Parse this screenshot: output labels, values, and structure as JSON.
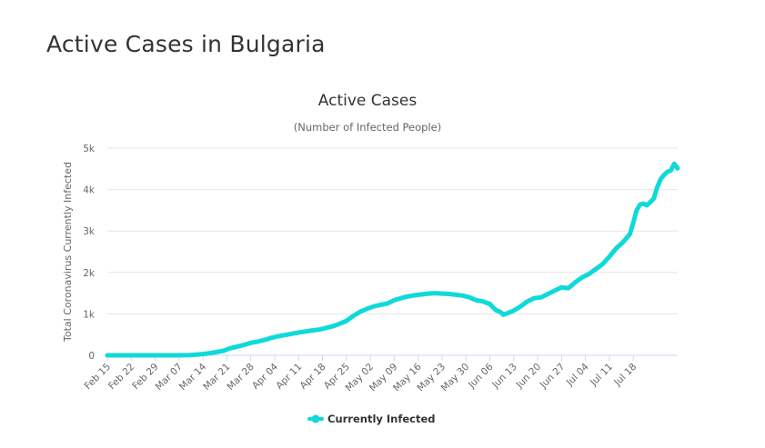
{
  "page": {
    "title": "Active Cases in Bulgaria"
  },
  "chart_data": {
    "type": "line",
    "title": "Active Cases",
    "subtitle": "(Number of Infected People)",
    "xlabel": "",
    "ylabel": "Total Coronavirus Currently Infected",
    "ylim": [
      0,
      5000
    ],
    "y_ticks": [
      {
        "value": 0,
        "label": "0"
      },
      {
        "value": 1000,
        "label": "1k"
      },
      {
        "value": 2000,
        "label": "2k"
      },
      {
        "value": 3000,
        "label": "3k"
      },
      {
        "value": 4000,
        "label": "4k"
      },
      {
        "value": 5000,
        "label": "5k"
      }
    ],
    "x_ticks": [
      {
        "day": 0,
        "label": "Feb 15"
      },
      {
        "day": 7,
        "label": "Feb 22"
      },
      {
        "day": 14,
        "label": "Feb 29"
      },
      {
        "day": 21,
        "label": "Mar 07"
      },
      {
        "day": 28,
        "label": "Mar 14"
      },
      {
        "day": 35,
        "label": "Mar 21"
      },
      {
        "day": 42,
        "label": "Mar 28"
      },
      {
        "day": 49,
        "label": "Apr 04"
      },
      {
        "day": 56,
        "label": "Apr 11"
      },
      {
        "day": 63,
        "label": "Apr 18"
      },
      {
        "day": 70,
        "label": "Apr 25"
      },
      {
        "day": 77,
        "label": "May 02"
      },
      {
        "day": 84,
        "label": "May 09"
      },
      {
        "day": 91,
        "label": "May 16"
      },
      {
        "day": 98,
        "label": "May 23"
      },
      {
        "day": 105,
        "label": "May 30"
      },
      {
        "day": 112,
        "label": "Jun 06"
      },
      {
        "day": 119,
        "label": "Jun 13"
      },
      {
        "day": 126,
        "label": "Jun 20"
      },
      {
        "day": 133,
        "label": "Jun 27"
      },
      {
        "day": 140,
        "label": "Jul 04"
      },
      {
        "day": 147,
        "label": "Jul 11"
      },
      {
        "day": 154,
        "label": "Jul 18"
      }
    ],
    "x_domain": [
      0,
      163
    ],
    "grid": true,
    "legend_position": "bottom-center",
    "series": [
      {
        "name": "Currently Infected",
        "color": "#10d9d9",
        "points": [
          [
            0,
            0
          ],
          [
            10,
            0
          ],
          [
            20,
            0
          ],
          [
            24,
            5
          ],
          [
            26,
            15
          ],
          [
            28,
            30
          ],
          [
            30,
            50
          ],
          [
            32,
            80
          ],
          [
            34,
            110
          ],
          [
            36,
            170
          ],
          [
            38,
            210
          ],
          [
            40,
            250
          ],
          [
            42,
            300
          ],
          [
            44,
            330
          ],
          [
            46,
            370
          ],
          [
            48,
            420
          ],
          [
            50,
            460
          ],
          [
            52,
            490
          ],
          [
            54,
            520
          ],
          [
            56,
            550
          ],
          [
            58,
            575
          ],
          [
            60,
            600
          ],
          [
            62,
            620
          ],
          [
            64,
            660
          ],
          [
            66,
            700
          ],
          [
            68,
            760
          ],
          [
            70,
            830
          ],
          [
            72,
            950
          ],
          [
            74,
            1050
          ],
          [
            76,
            1120
          ],
          [
            78,
            1180
          ],
          [
            80,
            1220
          ],
          [
            82,
            1250
          ],
          [
            84,
            1330
          ],
          [
            86,
            1380
          ],
          [
            88,
            1420
          ],
          [
            90,
            1450
          ],
          [
            92,
            1470
          ],
          [
            94,
            1490
          ],
          [
            96,
            1500
          ],
          [
            98,
            1490
          ],
          [
            100,
            1480
          ],
          [
            102,
            1460
          ],
          [
            104,
            1440
          ],
          [
            106,
            1400
          ],
          [
            108,
            1330
          ],
          [
            110,
            1300
          ],
          [
            111,
            1270
          ],
          [
            112,
            1240
          ],
          [
            113,
            1150
          ],
          [
            114,
            1080
          ],
          [
            115,
            1050
          ],
          [
            116,
            980
          ],
          [
            117,
            1010
          ],
          [
            119,
            1080
          ],
          [
            121,
            1180
          ],
          [
            123,
            1300
          ],
          [
            125,
            1380
          ],
          [
            127,
            1400
          ],
          [
            129,
            1480
          ],
          [
            131,
            1560
          ],
          [
            133,
            1640
          ],
          [
            135,
            1620
          ],
          [
            137,
            1760
          ],
          [
            139,
            1880
          ],
          [
            141,
            1960
          ],
          [
            143,
            2080
          ],
          [
            145,
            2200
          ],
          [
            147,
            2380
          ],
          [
            149,
            2580
          ],
          [
            151,
            2730
          ],
          [
            153,
            2920
          ],
          [
            154,
            3200
          ],
          [
            155,
            3500
          ],
          [
            156,
            3640
          ],
          [
            157,
            3660
          ],
          [
            158,
            3620
          ],
          [
            159,
            3700
          ],
          [
            160,
            3780
          ],
          [
            161,
            4050
          ],
          [
            162,
            4250
          ],
          [
            163,
            4350
          ],
          [
            164,
            4430
          ],
          [
            165,
            4460
          ],
          [
            166,
            4620
          ],
          [
            167,
            4510
          ]
        ]
      }
    ]
  }
}
